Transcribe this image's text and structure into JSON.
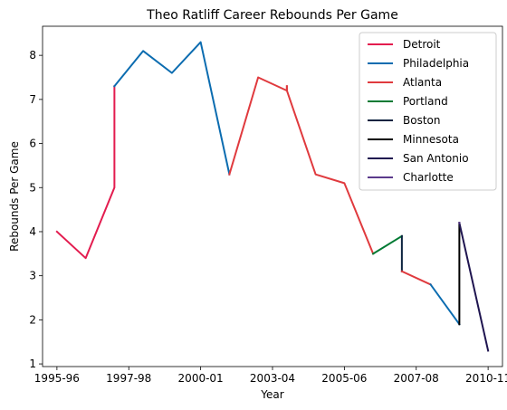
{
  "chart_data": {
    "type": "line",
    "title": "Theo Ratliff Career Rebounds Per Game",
    "xlabel": "Year",
    "ylabel": "Rebounds Per Game",
    "x_tick_labels": [
      "1995-96",
      "1997-98",
      "2000-01",
      "2003-04",
      "2005-06",
      "2007-08",
      "2010-11"
    ],
    "x_tick_positions": [
      0,
      2.5,
      5,
      7.5,
      10,
      12.5,
      15
    ],
    "xlim": [
      -0.5,
      15.5
    ],
    "y_ticks": [
      1,
      2,
      3,
      4,
      5,
      6,
      7,
      8
    ],
    "ylim": [
      0.94,
      8.66
    ],
    "grid": false,
    "legend_position": "upper-right",
    "series": [
      {
        "name": "Detroit",
        "color": "#E31C4F",
        "points": [
          [
            0,
            4.0
          ],
          [
            1,
            3.4
          ],
          [
            2,
            5.0
          ],
          [
            2,
            7.3
          ]
        ]
      },
      {
        "name": "Philadelphia",
        "color": "#0B6CB0",
        "points": [
          [
            2,
            7.3
          ],
          [
            3,
            8.1
          ],
          [
            4,
            7.6
          ],
          [
            5,
            8.3
          ],
          [
            6,
            5.3
          ]
        ]
      },
      {
        "name": "Atlanta",
        "color": "#E03A3E",
        "points": [
          [
            6,
            5.3
          ],
          [
            7,
            7.5
          ],
          [
            8,
            7.2
          ],
          [
            8,
            7.3
          ]
        ]
      },
      {
        "name": "Atlanta",
        "color": "#E03A3E",
        "points": [
          [
            8,
            7.3
          ],
          [
            8,
            7.2
          ],
          [
            9,
            5.3
          ],
          [
            10,
            5.1
          ],
          [
            11,
            3.5
          ]
        ]
      },
      {
        "name": "Portland",
        "color": "#007A33",
        "points": [
          [
            11,
            3.5
          ],
          [
            12,
            3.9
          ]
        ]
      },
      {
        "name": "Boston",
        "color": "#0C2340",
        "points": [
          [
            12,
            3.9
          ],
          [
            12,
            3.1
          ]
        ]
      },
      {
        "name": "Atlanta",
        "color": "#E03A3E",
        "points": [
          [
            12,
            3.1
          ],
          [
            13,
            2.8
          ]
        ]
      },
      {
        "name": "Philadelphia",
        "color": "#0B6CB0",
        "points": [
          [
            13,
            2.8
          ],
          [
            14,
            1.9
          ]
        ]
      },
      {
        "name": "Minnesota",
        "color": "#000000",
        "points": [
          [
            14,
            1.9
          ],
          [
            14,
            4.2
          ]
        ]
      },
      {
        "name": "San Antonio",
        "color": "#1F1550",
        "points": [
          [
            14,
            4.2
          ],
          [
            15,
            1.3
          ]
        ]
      },
      {
        "name": "Charlotte",
        "color": "#5B3A8C",
        "points": [
          [
            14,
            4.2
          ],
          [
            14,
            4.2
          ]
        ]
      }
    ],
    "legend": [
      {
        "label": "Detroit",
        "color": "#E31C4F"
      },
      {
        "label": "Philadelphia",
        "color": "#0B6CB0"
      },
      {
        "label": "Atlanta",
        "color": "#E03A3E"
      },
      {
        "label": "Portland",
        "color": "#007A33"
      },
      {
        "label": "Boston",
        "color": "#0C2340"
      },
      {
        "label": "Minnesota",
        "color": "#000000"
      },
      {
        "label": "San Antonio",
        "color": "#1F1550"
      },
      {
        "label": "Charlotte",
        "color": "#5B3A8C"
      }
    ]
  }
}
